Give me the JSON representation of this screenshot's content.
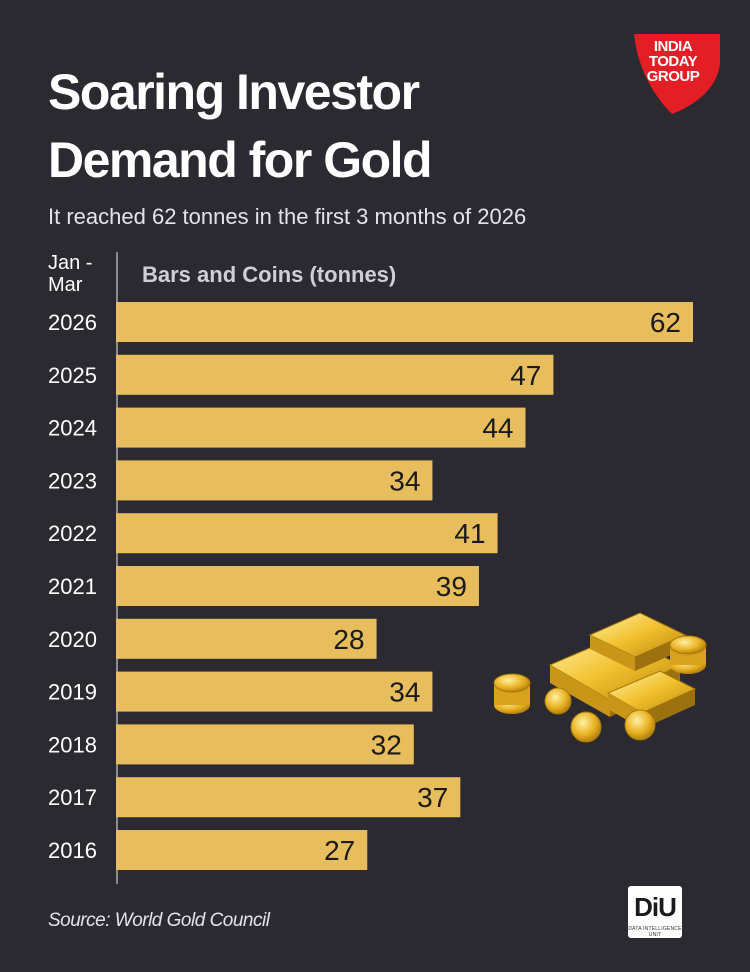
{
  "header": {
    "title_line1": "Soaring Investor",
    "title_line2": "Demand for Gold",
    "subtitle": "It reached 62 tonnes in the first 3 months of 2026"
  },
  "logo": {
    "line1": "INDIA",
    "line2": "TODAY",
    "line3": "GROUP",
    "color": "#e31e24"
  },
  "chart_data": {
    "type": "bar",
    "orientation": "horizontal",
    "period_label_line1": "Jan -",
    "period_label_line2": "Mar",
    "series": [
      {
        "name": "Bars and Coins (tonnes)",
        "values": [
          62,
          47,
          44,
          34,
          41,
          39,
          28,
          34,
          32,
          37,
          27
        ]
      }
    ],
    "categories": [
      "2026",
      "2025",
      "2024",
      "2023",
      "2022",
      "2021",
      "2020",
      "2019",
      "2018",
      "2017",
      "2016"
    ],
    "bar_color": "#e8bd5e",
    "label_color": "#1a1a1a",
    "xlim": [
      0,
      62
    ]
  },
  "footer": {
    "source": "Source: World Gold Council",
    "badge": "DiU",
    "badge_sub": "DATA INTELLIGENCE UNIT"
  },
  "illustration": {
    "icon": "gold-bars-and-coins-icon"
  }
}
